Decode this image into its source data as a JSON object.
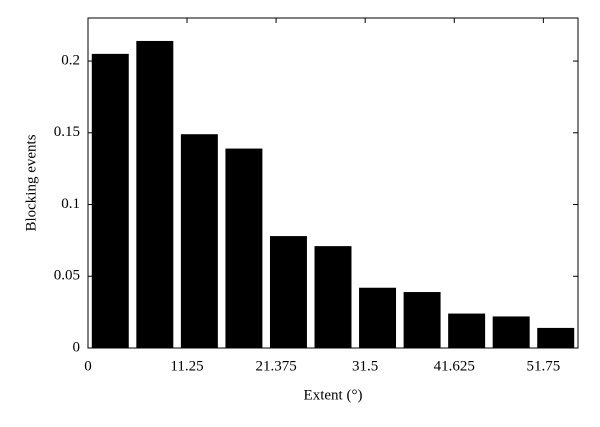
{
  "chart_data": {
    "type": "histogram",
    "x_label": "Extent (°)",
    "y_label": "Blocking events",
    "bins": [
      0,
      5.0625,
      10.125,
      15.1875,
      20.25,
      25.3125,
      30.375,
      35.4375,
      40.5,
      45.5625,
      50.625,
      55.6875
    ],
    "values": [
      0.205,
      0.214,
      0.149,
      0.139,
      0.078,
      0.071,
      0.042,
      0.039,
      0.024,
      0.022,
      0.014
    ],
    "color": "#000000",
    "xlim": [
      0,
      55.6875
    ],
    "xticks": [
      0,
      11.25,
      21.375,
      31.5,
      41.625,
      51.75
    ],
    "ylim": [
      0,
      0.23
    ],
    "yticks": [
      0,
      0.05,
      0.1,
      0.15,
      0.2
    ]
  }
}
